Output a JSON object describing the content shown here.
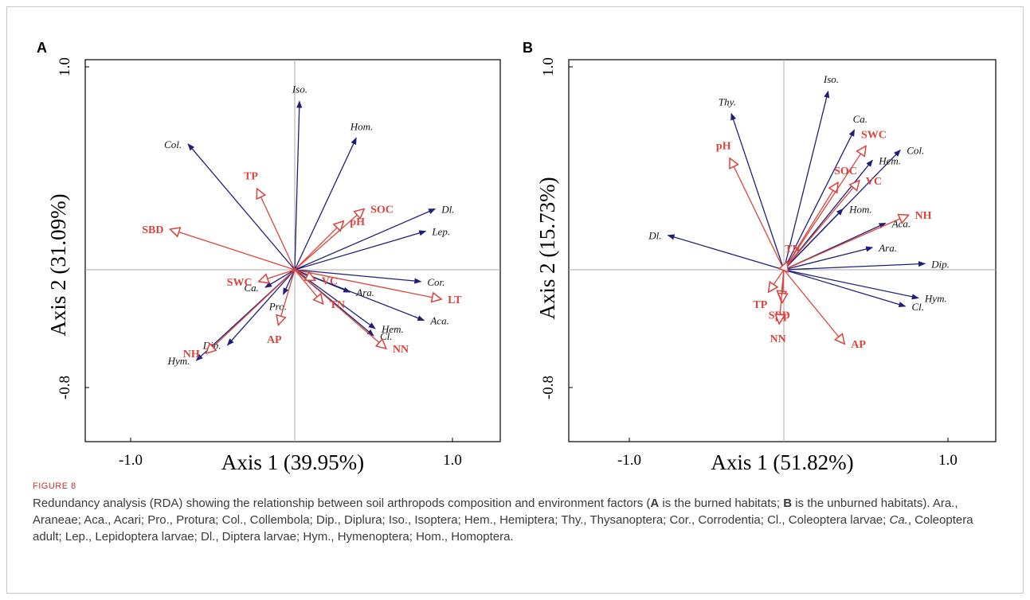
{
  "figure": {
    "label": "FIGURE 8",
    "caption": [
      {
        "t": "Redundancy analysis (RDA) showing the relationship between soil arthropods composition and environment factors ("
      },
      {
        "t": "A",
        "b": true
      },
      {
        "t": " is the burned habitats; "
      },
      {
        "t": "B",
        "b": true
      },
      {
        "t": " is the unburned habitats). Ara., Araneae; Aca., Acari; Pro., Protura; Col., Collembola; Dip., Diplura; Iso., Isoptera; Hem., Hemiptera; Thy., Thysanoptera; Cor., Corrodentia; Cl., Coleoptera larvae; "
      },
      {
        "t": "Ca.",
        "i": true
      },
      {
        "t": ", Coleoptera adult; Lep., Lepidoptera larvae; Dl., Diptera larvae; Hym., Hymenoptera; Hom., Homoptera."
      }
    ]
  },
  "colors": {
    "species": "#1f1f7a",
    "environment": "#d9453e",
    "axes": "#000000",
    "refline": "#a8a8a8"
  },
  "chart_data": [
    {
      "type": "scatter",
      "subtype": "rda-biplot",
      "panel": "A",
      "xlabel": "Axis 1 (39.95%)",
      "ylabel": "Axis 2 (31.09%)",
      "xlim": [
        -1.0,
        1.0
      ],
      "ylim": [
        -0.8,
        1.0
      ],
      "xticks": [
        "-1.0",
        "1.0"
      ],
      "yticks": [
        "1.0",
        "-0.8"
      ],
      "species": [
        {
          "name": "Iso.",
          "x": 0.03,
          "y": 0.83
        },
        {
          "name": "Hom.",
          "x": 0.39,
          "y": 0.65
        },
        {
          "name": "Col.",
          "x": -0.65,
          "y": 0.62
        },
        {
          "name": "Dl.",
          "x": 0.89,
          "y": 0.3
        },
        {
          "name": "Lep.",
          "x": 0.83,
          "y": 0.19
        },
        {
          "name": "Cor.",
          "x": 0.8,
          "y": -0.1
        },
        {
          "name": "Aca.",
          "x": 0.82,
          "y": -0.43
        },
        {
          "name": "Hem.",
          "x": 0.51,
          "y": -0.5
        },
        {
          "name": "Cl.",
          "x": 0.5,
          "y": -0.56
        },
        {
          "name": "Ara.",
          "x": 0.35,
          "y": -0.19
        },
        {
          "name": "Pro.",
          "x": -0.07,
          "y": -0.21
        },
        {
          "name": "Ca.",
          "x": -0.18,
          "y": -0.15
        },
        {
          "name": "Dip.",
          "x": -0.41,
          "y": -0.64
        },
        {
          "name": "Hym.",
          "x": -0.6,
          "y": -0.77
        }
      ],
      "environment": [
        {
          "name": "TP",
          "x": -0.23,
          "y": 0.4
        },
        {
          "name": "SBD",
          "x": -0.76,
          "y": 0.2
        },
        {
          "name": "pH",
          "x": 0.31,
          "y": 0.24
        },
        {
          "name": "SOC",
          "x": 0.44,
          "y": 0.3
        },
        {
          "name": "SWC",
          "x": -0.22,
          "y": -0.1
        },
        {
          "name": "VC",
          "x": 0.13,
          "y": -0.09
        },
        {
          "name": "TN",
          "x": 0.18,
          "y": -0.29
        },
        {
          "name": "AP",
          "x": -0.1,
          "y": -0.47
        },
        {
          "name": "NH",
          "x": -0.54,
          "y": -0.71
        },
        {
          "name": "LT",
          "x": 0.93,
          "y": -0.25
        },
        {
          "name": "NN",
          "x": 0.58,
          "y": -0.67
        }
      ]
    },
    {
      "type": "scatter",
      "subtype": "rda-biplot",
      "panel": "B",
      "xlabel": "Axis 1 (51.82%)",
      "ylabel": "Axis 2 (15.73%)",
      "xlim": [
        -1.0,
        1.0
      ],
      "ylim": [
        -0.8,
        1.0
      ],
      "xticks": [
        "-1.0",
        "1.0"
      ],
      "yticks": [
        "1.0",
        "-0.8"
      ],
      "species": [
        {
          "name": "Iso.",
          "x": 0.27,
          "y": 0.88
        },
        {
          "name": "Thy.",
          "x": -0.34,
          "y": 0.77
        },
        {
          "name": "Ca.",
          "x": 0.43,
          "y": 0.69
        },
        {
          "name": "Col.",
          "x": 0.71,
          "y": 0.59
        },
        {
          "name": "Hem.",
          "x": 0.54,
          "y": 0.54
        },
        {
          "name": "Hom.",
          "x": 0.36,
          "y": 0.3
        },
        {
          "name": "Aca.",
          "x": 0.62,
          "y": 0.23
        },
        {
          "name": "Ara.",
          "x": 0.54,
          "y": 0.11
        },
        {
          "name": "Dip.",
          "x": 0.86,
          "y": 0.03
        },
        {
          "name": "Dl.",
          "x": -0.75,
          "y": 0.17
        },
        {
          "name": "Hym.",
          "x": 0.82,
          "y": -0.24
        },
        {
          "name": "Cl.",
          "x": 0.74,
          "y": -0.31
        }
      ],
      "environment": [
        {
          "name": "pH",
          "x": -0.35,
          "y": 0.55
        },
        {
          "name": "SOC",
          "x": 0.33,
          "y": 0.43
        },
        {
          "name": "SWC",
          "x": 0.5,
          "y": 0.61
        },
        {
          "name": "VC",
          "x": 0.46,
          "y": 0.44
        },
        {
          "name": "NH",
          "x": 0.76,
          "y": 0.27
        },
        {
          "name": "TN",
          "x": 0.02,
          "y": 0.04
        },
        {
          "name": "TP",
          "x": -0.1,
          "y": -0.19
        },
        {
          "name": "SBD",
          "x": -0.02,
          "y": -0.26
        },
        {
          "name": "LT",
          "x": -0.01,
          "y": -0.28
        },
        {
          "name": "NN",
          "x": -0.03,
          "y": -0.46
        },
        {
          "name": "AP",
          "x": 0.37,
          "y": -0.63
        }
      ]
    }
  ]
}
